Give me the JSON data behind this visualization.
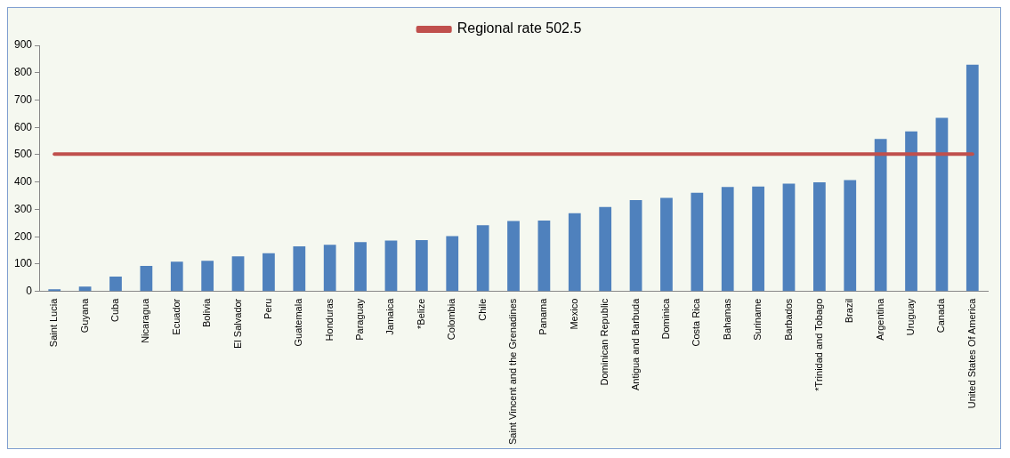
{
  "chart_data": {
    "type": "bar",
    "categories": [
      "Saint Lucia",
      "Guyana",
      "Cuba",
      "Nicaragua",
      "Ecuador",
      "Bolivia",
      "El Salvador",
      "Peru",
      "Guatemala",
      "Honduras",
      "Paraguay",
      "Jamaica",
      "*Belize",
      "Colombia",
      "Chile",
      "Saint Vincent and the Grenadines",
      "Panama",
      "Mexico",
      "Dominican Republic",
      "Antigua and Barbuda",
      "Dominica",
      "Costa Rica",
      "Bahamas",
      "Suriname",
      "Barbados",
      "*Trinidad and Tobago",
      "Brazil",
      "Argentina",
      "Uruguay",
      "Canada",
      "United States Of America"
    ],
    "series": [
      {
        "color": "#4f81bd",
        "values": [
          8,
          18,
          54,
          93,
          109,
          112,
          128,
          140,
          165,
          171,
          180,
          186,
          188,
          202,
          242,
          258,
          259,
          286,
          309,
          334,
          342,
          361,
          382,
          384,
          394,
          399,
          407,
          558,
          585,
          635,
          829
        ]
      },
      {
        "type": "line",
        "name": "Regional rate 502.5",
        "color": "#c0504d",
        "values": [
          502.5,
          502.5,
          502.5,
          502.5,
          502.5,
          502.5,
          502.5,
          502.5,
          502.5,
          502.5,
          502.5,
          502.5,
          502.5,
          502.5,
          502.5,
          502.5,
          502.5,
          502.5,
          502.5,
          502.5,
          502.5,
          502.5,
          502.5,
          502.5,
          502.5,
          502.5,
          502.5,
          502.5,
          502.5,
          502.5,
          502.5
        ]
      }
    ],
    "ylim": [
      0,
      900
    ],
    "yticks": [
      0,
      100,
      200,
      300,
      400,
      500,
      600,
      700,
      800,
      900
    ],
    "grid": false,
    "legend": "top",
    "marker": "none"
  }
}
